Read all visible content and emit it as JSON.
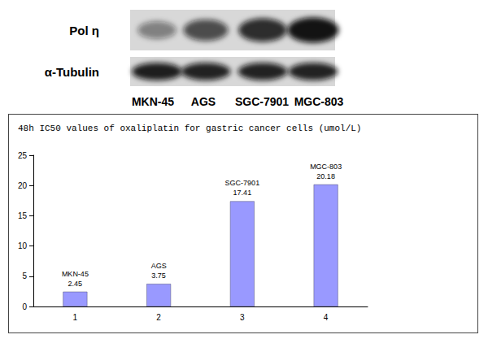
{
  "blot": {
    "rows": [
      {
        "label": "Pol η",
        "band_intensity": [
          0.45,
          0.7,
          0.85,
          0.97
        ]
      },
      {
        "label": "α-Tubulin",
        "band_intensity": [
          0.92,
          0.9,
          0.9,
          0.9
        ]
      }
    ],
    "lanes": [
      "MKN-45",
      "AGS",
      "SGC-7901",
      "MGC-803"
    ]
  },
  "chart_data": {
    "type": "bar",
    "title": "48h IC50 values of oxaliplatin for gastric cancer cells (umol/L)",
    "categories": [
      "1",
      "2",
      "3",
      "4"
    ],
    "labels": [
      "MKN-45",
      "AGS",
      "SGC-7901",
      "MGC-803"
    ],
    "values": [
      2.45,
      3.75,
      17.41,
      20.18
    ],
    "color": "#9999ff",
    "ylim": [
      0,
      25
    ],
    "yticks": [
      0,
      5,
      10,
      15,
      20,
      25
    ],
    "grid": false,
    "data_labels": true
  }
}
